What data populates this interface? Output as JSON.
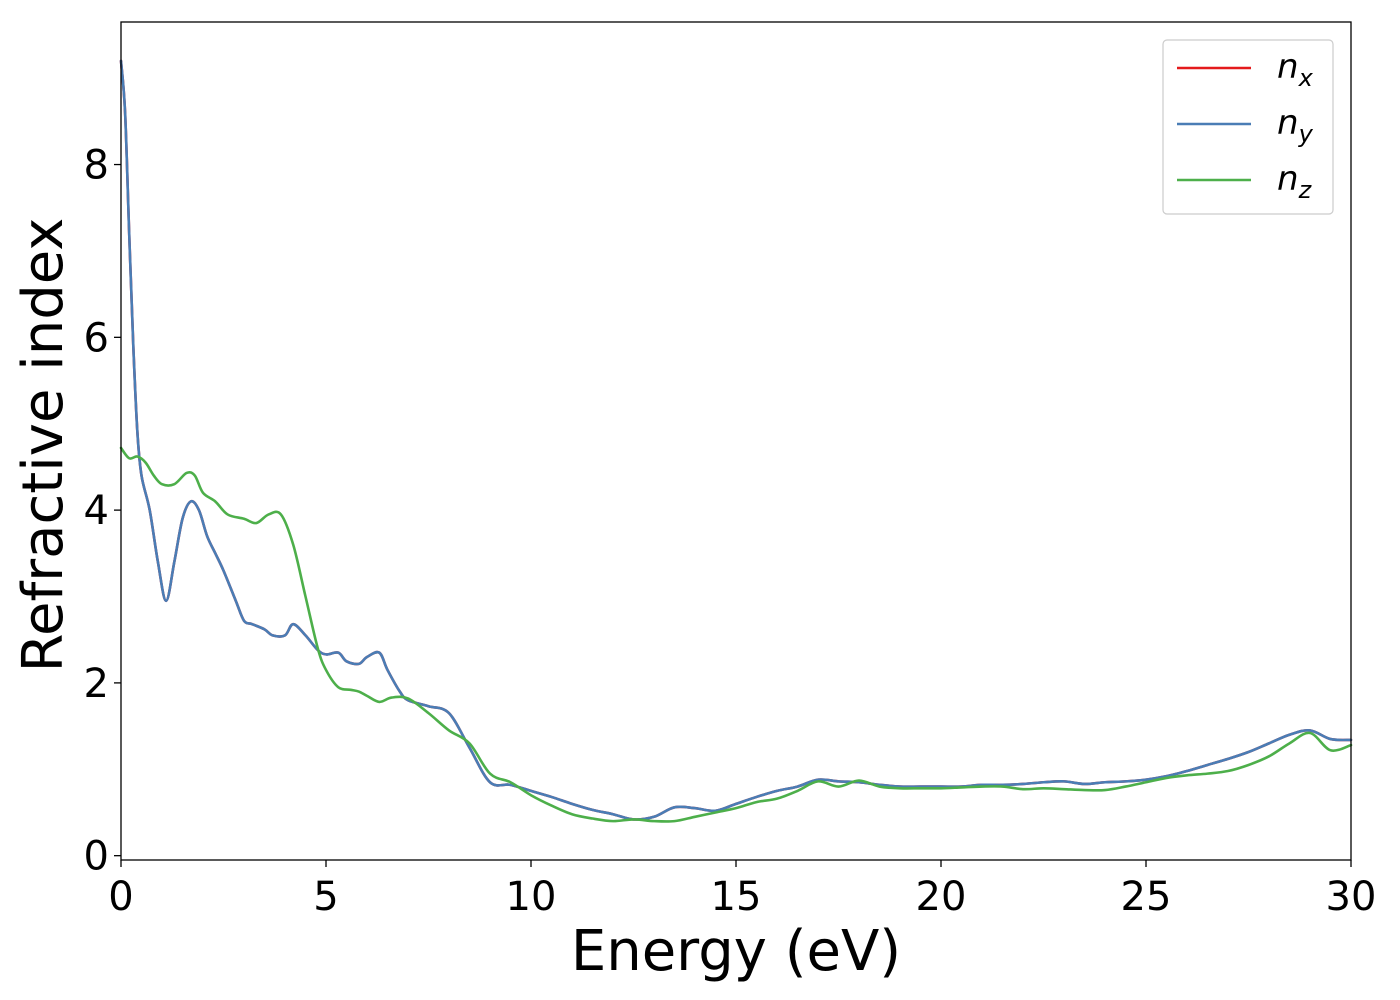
{
  "chart_data": {
    "type": "line",
    "title": "",
    "xlabel": "Energy (eV)",
    "ylabel": "Refractive index",
    "xlim": [
      0,
      30
    ],
    "ylim": [
      -0.05,
      9.65
    ],
    "xticks": [
      0,
      5,
      10,
      15,
      20,
      25,
      30
    ],
    "xtick_labels": [
      "0",
      "5",
      "10",
      "15",
      "20",
      "25",
      "30"
    ],
    "yticks": [
      0,
      2,
      4,
      6,
      8
    ],
    "ytick_labels": [
      "0",
      "2",
      "4",
      "6",
      "8"
    ],
    "grid": false,
    "legend_position": "top-right",
    "series": [
      {
        "name": "n_x",
        "legend_base": "n",
        "legend_sub": "x",
        "color": "#e41a1c",
        "x": [
          0,
          0.1,
          0.2,
          0.3,
          0.4,
          0.5,
          0.7,
          0.9,
          1.1,
          1.3,
          1.5,
          1.7,
          1.9,
          2.1,
          2.3,
          2.5,
          2.8,
          3.0,
          3.2,
          3.5,
          3.7,
          4.0,
          4.2,
          4.5,
          4.8,
          5.0,
          5.3,
          5.5,
          5.8,
          6.0,
          6.3,
          6.5,
          6.8,
          7.0,
          7.5,
          8.0,
          8.5,
          9.0,
          9.5,
          10.0,
          10.5,
          11.0,
          11.5,
          12.0,
          12.5,
          13.0,
          13.5,
          14.0,
          14.5,
          15.0,
          15.5,
          16.0,
          16.5,
          17.0,
          17.5,
          18.0,
          18.5,
          19.0,
          19.5,
          20.0,
          20.5,
          21.0,
          21.5,
          22.0,
          22.5,
          23.0,
          23.5,
          24.0,
          24.5,
          25.0,
          25.5,
          26.0,
          26.5,
          27.0,
          27.5,
          28.0,
          28.5,
          29.0,
          29.5,
          30.0
        ],
        "y": [
          9.2,
          8.6,
          7.2,
          5.9,
          4.9,
          4.4,
          4.0,
          3.4,
          2.95,
          3.4,
          3.9,
          4.1,
          4.0,
          3.7,
          3.5,
          3.3,
          2.95,
          2.72,
          2.68,
          2.62,
          2.55,
          2.55,
          2.68,
          2.55,
          2.38,
          2.33,
          2.35,
          2.25,
          2.22,
          2.3,
          2.35,
          2.15,
          1.9,
          1.8,
          1.73,
          1.65,
          1.25,
          0.85,
          0.82,
          0.75,
          0.68,
          0.6,
          0.53,
          0.48,
          0.42,
          0.45,
          0.56,
          0.55,
          0.52,
          0.6,
          0.68,
          0.75,
          0.8,
          0.88,
          0.86,
          0.85,
          0.82,
          0.8,
          0.8,
          0.8,
          0.8,
          0.82,
          0.82,
          0.83,
          0.85,
          0.86,
          0.83,
          0.85,
          0.86,
          0.88,
          0.92,
          0.98,
          1.05,
          1.12,
          1.2,
          1.3,
          1.4,
          1.45,
          1.35,
          1.34
        ]
      },
      {
        "name": "n_y",
        "legend_base": "n",
        "legend_sub": "y",
        "color": "#4a7db5",
        "x": [
          0,
          0.1,
          0.2,
          0.3,
          0.4,
          0.5,
          0.7,
          0.9,
          1.1,
          1.3,
          1.5,
          1.7,
          1.9,
          2.1,
          2.3,
          2.5,
          2.8,
          3.0,
          3.2,
          3.5,
          3.7,
          4.0,
          4.2,
          4.5,
          4.8,
          5.0,
          5.3,
          5.5,
          5.8,
          6.0,
          6.3,
          6.5,
          6.8,
          7.0,
          7.5,
          8.0,
          8.5,
          9.0,
          9.5,
          10.0,
          10.5,
          11.0,
          11.5,
          12.0,
          12.5,
          13.0,
          13.5,
          14.0,
          14.5,
          15.0,
          15.5,
          16.0,
          16.5,
          17.0,
          17.5,
          18.0,
          18.5,
          19.0,
          19.5,
          20.0,
          20.5,
          21.0,
          21.5,
          22.0,
          22.5,
          23.0,
          23.5,
          24.0,
          24.5,
          25.0,
          25.5,
          26.0,
          26.5,
          27.0,
          27.5,
          28.0,
          28.5,
          29.0,
          29.5,
          30.0
        ],
        "y": [
          9.2,
          8.6,
          7.2,
          5.9,
          4.9,
          4.4,
          4.0,
          3.4,
          2.95,
          3.4,
          3.9,
          4.1,
          4.0,
          3.7,
          3.5,
          3.3,
          2.95,
          2.72,
          2.68,
          2.62,
          2.55,
          2.55,
          2.68,
          2.55,
          2.38,
          2.33,
          2.35,
          2.25,
          2.22,
          2.3,
          2.35,
          2.15,
          1.9,
          1.8,
          1.73,
          1.65,
          1.25,
          0.85,
          0.82,
          0.75,
          0.68,
          0.6,
          0.53,
          0.48,
          0.42,
          0.45,
          0.56,
          0.55,
          0.52,
          0.6,
          0.68,
          0.75,
          0.8,
          0.88,
          0.86,
          0.85,
          0.82,
          0.8,
          0.8,
          0.8,
          0.8,
          0.82,
          0.82,
          0.83,
          0.85,
          0.86,
          0.83,
          0.85,
          0.86,
          0.88,
          0.92,
          0.98,
          1.05,
          1.12,
          1.2,
          1.3,
          1.4,
          1.45,
          1.35,
          1.34
        ]
      },
      {
        "name": "n_z",
        "legend_base": "n",
        "legend_sub": "z",
        "color": "#4daf4a",
        "x": [
          0,
          0.2,
          0.4,
          0.6,
          0.8,
          1.0,
          1.3,
          1.6,
          1.8,
          2.0,
          2.3,
          2.6,
          3.0,
          3.3,
          3.6,
          3.9,
          4.2,
          4.5,
          4.8,
          5.0,
          5.3,
          5.6,
          5.8,
          6.0,
          6.3,
          6.6,
          7.0,
          7.5,
          8.0,
          8.5,
          9.0,
          9.5,
          10.0,
          10.5,
          11.0,
          11.5,
          12.0,
          12.5,
          13.0,
          13.5,
          14.0,
          14.5,
          15.0,
          15.5,
          16.0,
          16.5,
          17.0,
          17.5,
          18.0,
          18.5,
          19.0,
          19.5,
          20.0,
          20.5,
          21.0,
          21.5,
          22.0,
          22.5,
          23.0,
          23.5,
          24.0,
          24.5,
          25.0,
          25.5,
          26.0,
          26.5,
          27.0,
          27.5,
          28.0,
          28.5,
          29.0,
          29.5,
          30.0
        ],
        "y": [
          4.72,
          4.6,
          4.62,
          4.55,
          4.4,
          4.3,
          4.3,
          4.43,
          4.4,
          4.2,
          4.1,
          3.95,
          3.9,
          3.85,
          3.95,
          3.95,
          3.6,
          3.0,
          2.4,
          2.15,
          1.95,
          1.92,
          1.9,
          1.85,
          1.78,
          1.83,
          1.82,
          1.65,
          1.45,
          1.3,
          0.95,
          0.85,
          0.7,
          0.58,
          0.48,
          0.43,
          0.4,
          0.42,
          0.4,
          0.4,
          0.45,
          0.5,
          0.55,
          0.62,
          0.66,
          0.75,
          0.86,
          0.8,
          0.87,
          0.8,
          0.78,
          0.78,
          0.78,
          0.79,
          0.8,
          0.8,
          0.77,
          0.78,
          0.77,
          0.76,
          0.76,
          0.8,
          0.85,
          0.9,
          0.93,
          0.95,
          0.98,
          1.05,
          1.15,
          1.3,
          1.42,
          1.22,
          1.28
        ]
      }
    ]
  }
}
